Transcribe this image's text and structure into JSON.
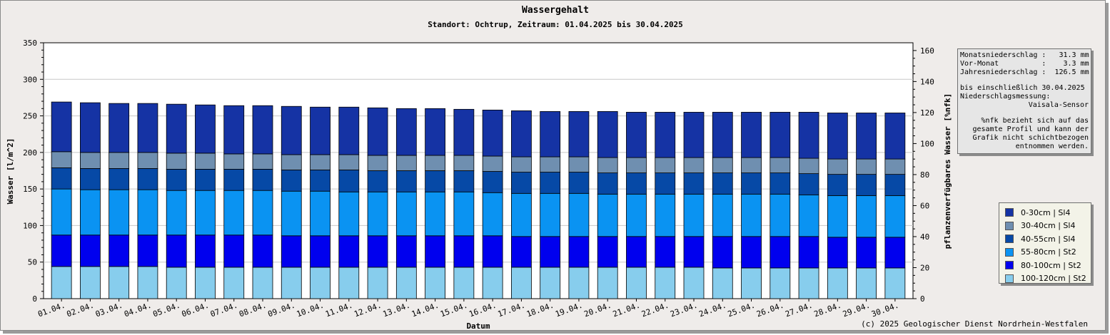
{
  "chart_data": {
    "type": "bar",
    "stacked": true,
    "title": "Wassergehalt",
    "subtitle": "Standort: Ochtrup, Zeitraum: 01.04.2025 bis 30.04.2025",
    "xlabel": "Datum",
    "ylabel": "Wasser [l/m^2]",
    "y2label": "pflanzenverfügbares Wasser [%nfk]",
    "ylim": [
      0,
      350
    ],
    "y2lim": [
      0,
      165
    ],
    "yticks": [
      "0",
      "50",
      "100",
      "150",
      "200",
      "250",
      "300",
      "350"
    ],
    "y2ticks": [
      "0",
      "20",
      "40",
      "60",
      "80",
      "100",
      "120",
      "140",
      "160"
    ],
    "grid": true,
    "legend_position": "right",
    "categories": [
      "01.04.",
      "02.04.",
      "03.04.",
      "04.04.",
      "05.04.",
      "06.04.",
      "07.04.",
      "08.04.",
      "09.04.",
      "10.04.",
      "11.04.",
      "12.04.",
      "13.04.",
      "14.04.",
      "15.04.",
      "16.04.",
      "17.04.",
      "18.04.",
      "19.04.",
      "20.04.",
      "21.04.",
      "22.04.",
      "23.04.",
      "24.04.",
      "25.04.",
      "26.04.",
      "27.04.",
      "28.04.",
      "29.04.",
      "30.04."
    ],
    "series": [
      {
        "name": "100-120cm | St2",
        "color": "#87cded",
        "values": [
          44,
          44,
          44,
          44,
          43,
          43,
          43,
          43,
          43,
          43,
          43,
          43,
          43,
          43,
          43,
          43,
          43,
          43,
          43,
          43,
          43,
          43,
          43,
          42,
          42,
          42,
          42,
          42,
          42,
          42
        ]
      },
      {
        "name": "80-100cm | St2",
        "color": "#0000ee",
        "values": [
          43,
          43,
          43,
          43,
          44,
          44,
          44,
          44,
          43,
          43,
          43,
          43,
          43,
          43,
          43,
          43,
          42,
          42,
          42,
          42,
          42,
          42,
          42,
          43,
          43,
          43,
          43,
          42,
          42,
          42
        ]
      },
      {
        "name": "55-80cm | St2",
        "color": "#0a93f2",
        "values": [
          63,
          62,
          62,
          62,
          61,
          61,
          61,
          61,
          61,
          61,
          60,
          60,
          60,
          60,
          60,
          59,
          59,
          59,
          59,
          58,
          58,
          58,
          58,
          58,
          58,
          58,
          57,
          57,
          57,
          57
        ]
      },
      {
        "name": "40-55cm | Sl4",
        "color": "#0649a6",
        "values": [
          29,
          29,
          29,
          29,
          29,
          29,
          29,
          29,
          29,
          29,
          30,
          29,
          29,
          29,
          29,
          29,
          29,
          29,
          29,
          29,
          29,
          29,
          29,
          29,
          29,
          29,
          29,
          29,
          29,
          29
        ]
      },
      {
        "name": "30-40cm | Sl4",
        "color": "#6f8fb0",
        "values": [
          22,
          22,
          22,
          22,
          22,
          22,
          21,
          21,
          21,
          21,
          21,
          21,
          21,
          21,
          21,
          21,
          21,
          21,
          21,
          21,
          21,
          21,
          21,
          21,
          21,
          21,
          21,
          21,
          21,
          21
        ]
      },
      {
        "name": "0-30cm | Sl4",
        "color": "#1533a4",
        "values": [
          68,
          68,
          67,
          67,
          67,
          66,
          66,
          66,
          66,
          65,
          65,
          65,
          64,
          64,
          63,
          63,
          63,
          62,
          62,
          63,
          62,
          62,
          62,
          62,
          62,
          62,
          63,
          63,
          63,
          63
        ]
      }
    ]
  },
  "info_box": {
    "line1": "Monatsniederschlag :   31.3 mm",
    "line2": "Vor-Monat          :    3.3 mm",
    "line3": "Jahresniederschlag :  126.5 mm",
    "line4": "bis einschließlich 30.04.2025",
    "line5": "Niederschlagsmessung:",
    "line6": "Vaisala-Sensor",
    "note": "%nfk bezieht sich auf das gesamte Profil und kann der Grafik nicht schichtbezogen entnommen werden."
  },
  "copyright": "(c) 2025 Geologischer Dienst Nordrhein-Westfalen"
}
